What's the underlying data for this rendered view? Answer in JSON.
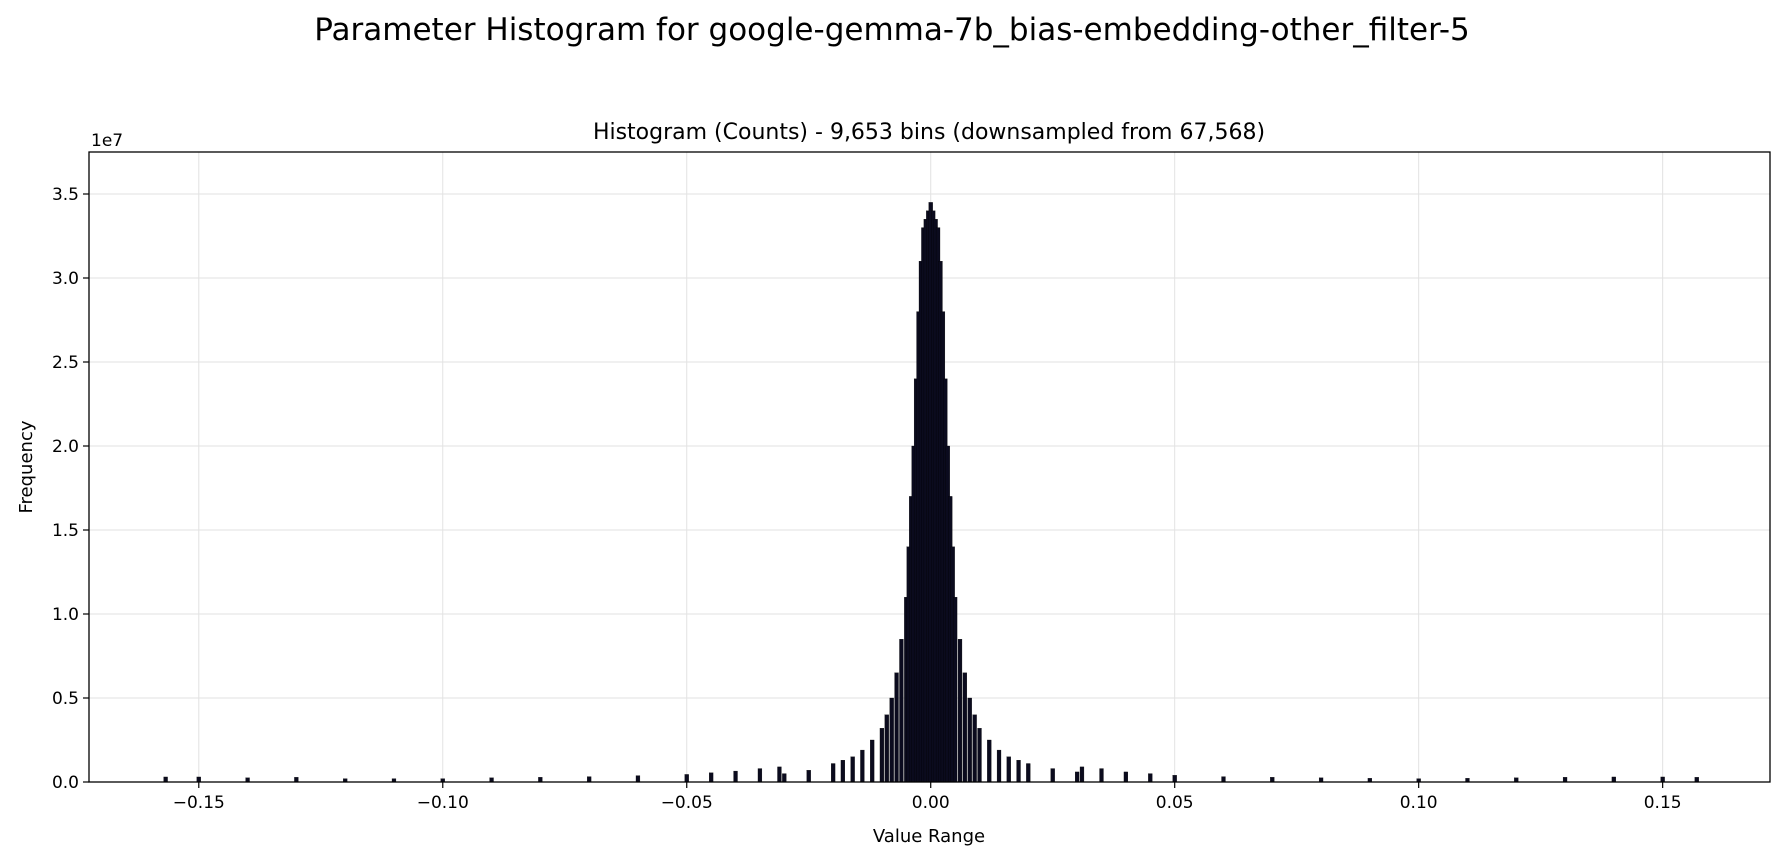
{
  "figure": {
    "title": "Parameter Histogram for google-gemma-7b_bias-embedding-other_filter-5"
  },
  "chart_data": {
    "type": "bar",
    "title": "Histogram (Counts) - 9,653 bins (downsampled from 67,568)",
    "xlabel": "Value Range",
    "ylabel": "Frequency",
    "y_offset_text": "1e7",
    "y_scale": 10000000,
    "xlim": [
      -0.1725,
      0.172
    ],
    "ylim": [
      0,
      37500000
    ],
    "grid": true,
    "bar_color": "#0b0b1e",
    "edge_color": "#000000",
    "x_ticks": [
      {
        "value": -0.15,
        "label": "−0.15"
      },
      {
        "value": -0.1,
        "label": "−0.10"
      },
      {
        "value": -0.05,
        "label": "−0.05"
      },
      {
        "value": 0.0,
        "label": "0.00"
      },
      {
        "value": 0.05,
        "label": "0.05"
      },
      {
        "value": 0.1,
        "label": "0.10"
      },
      {
        "value": 0.15,
        "label": "0.15"
      }
    ],
    "y_ticks": [
      {
        "value": 0,
        "label": "0.0"
      },
      {
        "value": 5000000,
        "label": "0.5"
      },
      {
        "value": 10000000,
        "label": "1.0"
      },
      {
        "value": 15000000,
        "label": "1.5"
      },
      {
        "value": 20000000,
        "label": "2.0"
      },
      {
        "value": 25000000,
        "label": "2.5"
      },
      {
        "value": 30000000,
        "label": "3.0"
      },
      {
        "value": 35000000,
        "label": "3.5"
      }
    ],
    "bin_width": 0.0008,
    "x": [
      -0.1568,
      -0.15,
      -0.14,
      -0.13,
      -0.12,
      -0.11,
      -0.1,
      -0.09,
      -0.08,
      -0.07,
      -0.06,
      -0.05,
      -0.045,
      -0.04,
      -0.035,
      -0.031,
      -0.03,
      -0.025,
      -0.02,
      -0.018,
      -0.016,
      -0.014,
      -0.012,
      -0.01,
      -0.009,
      -0.008,
      -0.007,
      -0.006,
      -0.005,
      -0.0045,
      -0.004,
      -0.0035,
      -0.003,
      -0.0025,
      -0.002,
      -0.0015,
      -0.001,
      -0.0005,
      0,
      0.0005,
      0.001,
      0.0015,
      0.002,
      0.0025,
      0.003,
      0.0035,
      0.004,
      0.0045,
      0.005,
      0.006,
      0.007,
      0.008,
      0.009,
      0.01,
      0.012,
      0.014,
      0.016,
      0.018,
      0.02,
      0.025,
      0.03,
      0.031,
      0.035,
      0.04,
      0.045,
      0.05,
      0.06,
      0.07,
      0.08,
      0.09,
      0.1,
      0.11,
      0.12,
      0.13,
      0.14,
      0.15,
      0.157
    ],
    "values": [
      300000,
      300000,
      250000,
      280000,
      200000,
      200000,
      200000,
      250000,
      280000,
      320000,
      380000,
      450000,
      550000,
      650000,
      800000,
      900000,
      500000,
      700000,
      1100000,
      1300000,
      1500000,
      1900000,
      2500000,
      3200000,
      4000000,
      5000000,
      6500000,
      8500000,
      11000000,
      14000000,
      17000000,
      20000000,
      24000000,
      28000000,
      31000000,
      33000000,
      33500000,
      34000000,
      34500000,
      34000000,
      33500000,
      33000000,
      31000000,
      28000000,
      24000000,
      20000000,
      17000000,
      14000000,
      11000000,
      8500000,
      6500000,
      5000000,
      4000000,
      3200000,
      2500000,
      1900000,
      1500000,
      1300000,
      1100000,
      800000,
      600000,
      900000,
      800000,
      600000,
      500000,
      400000,
      320000,
      280000,
      250000,
      220000,
      200000,
      220000,
      250000,
      280000,
      300000,
      300000,
      280000
    ]
  }
}
